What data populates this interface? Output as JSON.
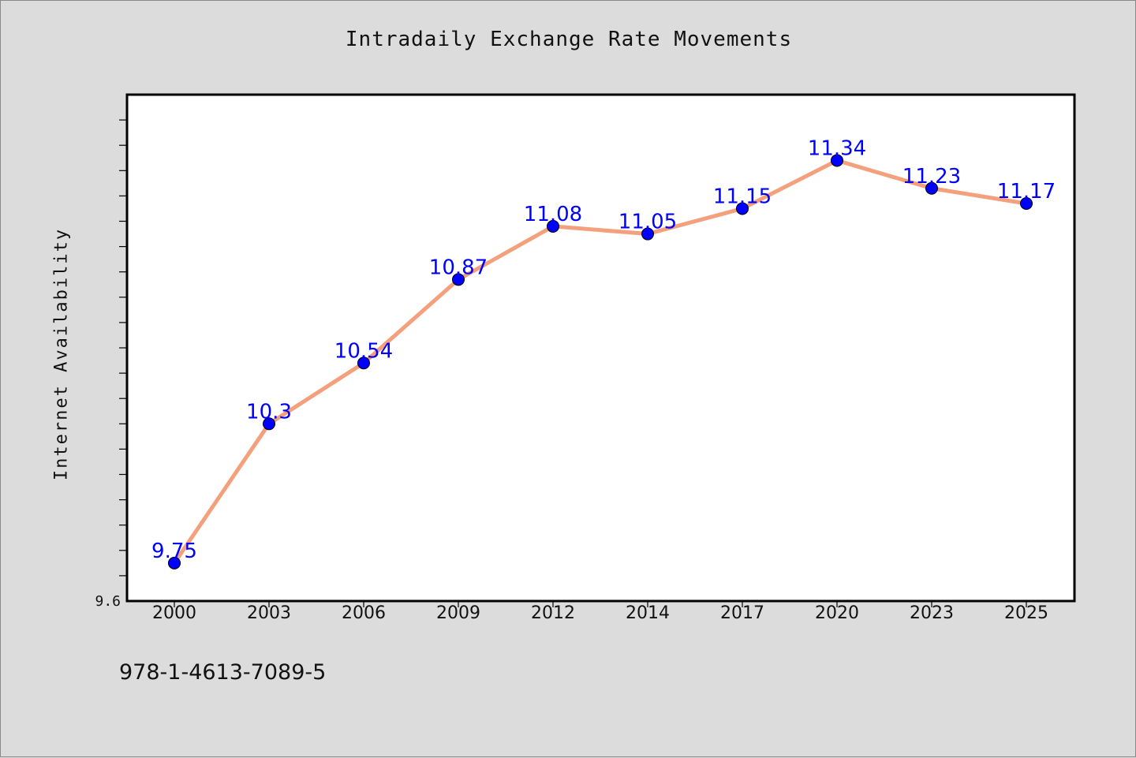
{
  "chart_data": {
    "type": "line",
    "title": "Intradaily Exchange Rate Movements",
    "xlabel": "",
    "ylabel": "Internet Availability",
    "categories": [
      "2000",
      "2003",
      "2006",
      "2009",
      "2012",
      "2014",
      "2017",
      "2020",
      "2023",
      "2025"
    ],
    "series": [
      {
        "values": [
          9.75,
          10.3,
          10.54,
          10.87,
          11.08,
          11.05,
          11.15,
          11.34,
          11.23,
          11.17
        ],
        "line_color": "#f4a07c",
        "marker_color": "#0000ff"
      }
    ],
    "data_labels": [
      "9.75",
      "10.3",
      "10.54",
      "10.87",
      "11.08",
      "11.05",
      "11.15",
      "11.34",
      "11.23",
      "11.17"
    ],
    "y_tick_labels": [
      "9.6"
    ],
    "ylim": [
      9.6,
      11.6
    ],
    "grid": false,
    "legend": "none"
  },
  "footer": {
    "code": "978-1-4613-7089-5"
  }
}
